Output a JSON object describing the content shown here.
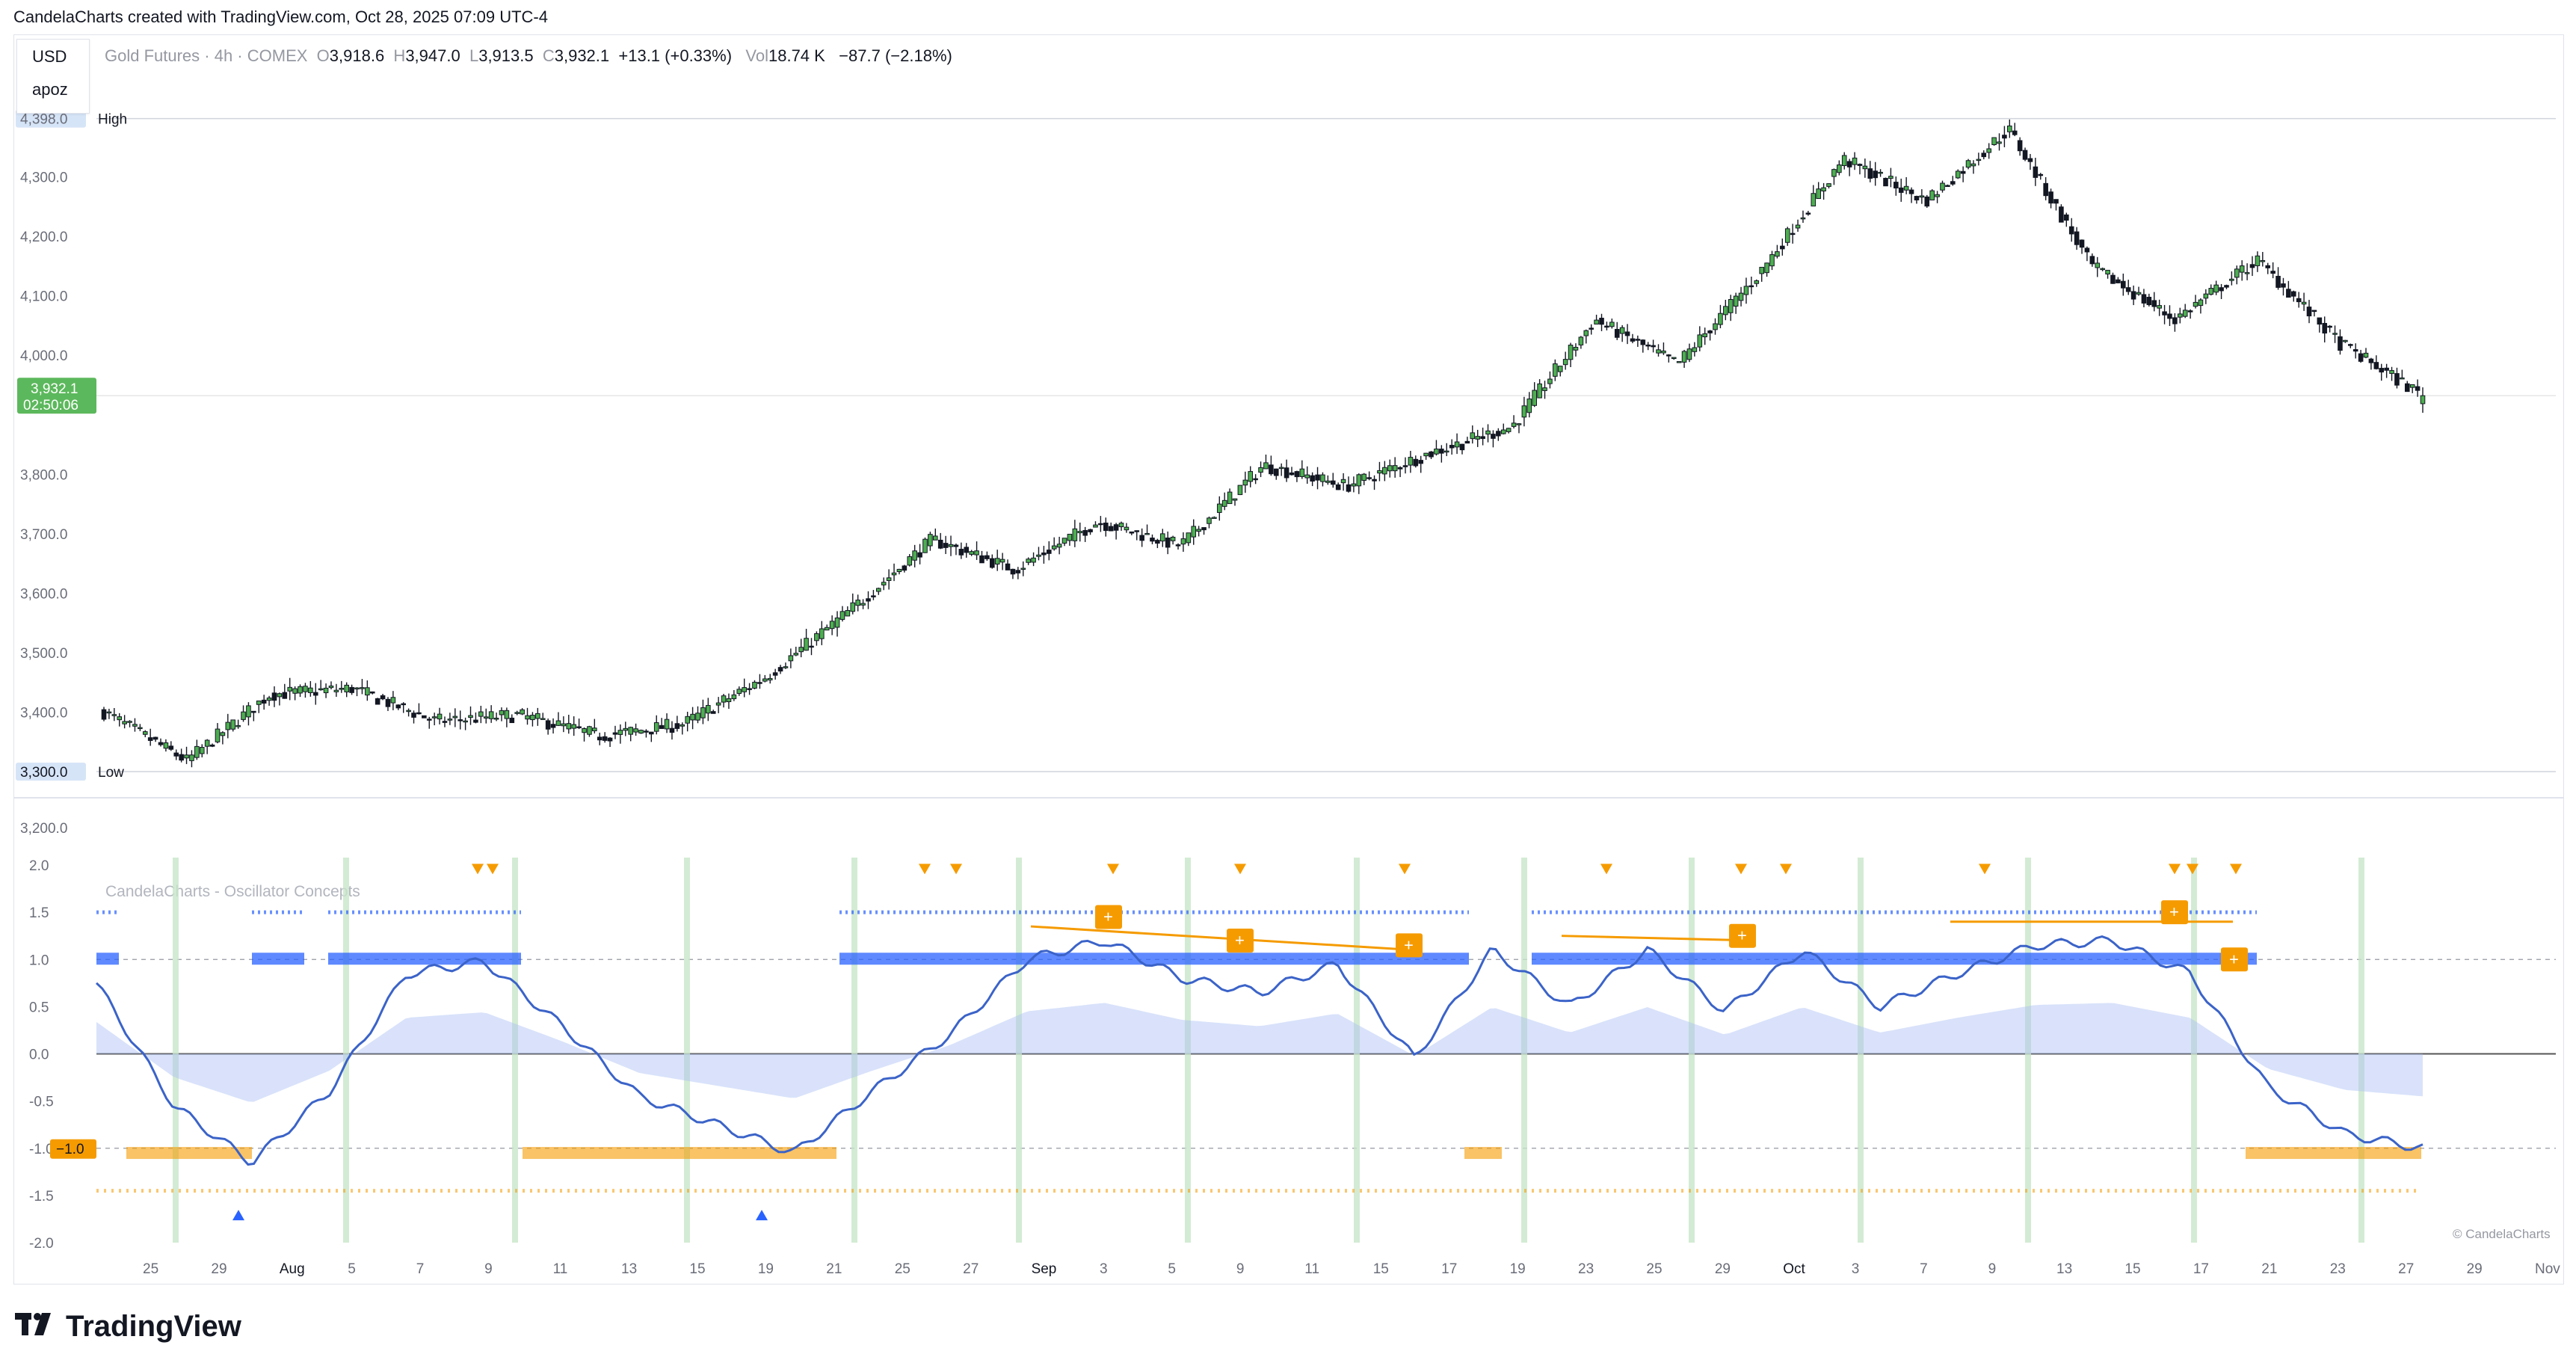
{
  "header": {
    "caption": "CandelaCharts created with TradingView.com, Oct 28, 2025 07:09 UTC-4",
    "currency": "USD",
    "user": "apoz",
    "symbol_label": "Gold Futures · 4h · COMEX",
    "ohlc": {
      "o_label": "O",
      "o": "3,918.6",
      "h_label": "H",
      "h": "3,947.0",
      "l_label": "L",
      "l": "3,913.5",
      "c_label": "C",
      "c": "3,932.1",
      "change": "+13.1 (+0.33%)"
    },
    "vol_label": "Vol",
    "vol": "18.74 K",
    "vol_change": "−87.7 (−2.18%)"
  },
  "price_pane": {
    "ticks": [
      "4,300.0",
      "4,200.0",
      "4,100.0",
      "4,000.0",
      "3,800.0",
      "3,700.0",
      "3,600.0",
      "3,500.0",
      "3,400.0",
      "3,200.0"
    ],
    "high_label": {
      "value": "4,398.0",
      "text": "High"
    },
    "low_label": {
      "value": "3,300.0",
      "text": "Low"
    },
    "last_price": {
      "value": "3,932.1",
      "countdown": "02:50:06",
      "color": "#5cb85c"
    }
  },
  "oscillator_pane": {
    "title": "CandelaCharts - Oscillator Concepts",
    "ticks": [
      "2.0",
      "1.5",
      "1.0",
      "0.5",
      "0.0",
      "-0.5",
      "-1.0",
      "-1.5",
      "-2.0"
    ],
    "current_label": "−1.0",
    "copyright": "© CandelaCharts",
    "colors": {
      "bull": "#2962ff",
      "bear": "#f59b00",
      "line_bull": "#3b63c8",
      "vertical": "#c8e6c9"
    }
  },
  "time_axis": [
    "25",
    "29",
    "Aug",
    "5",
    "7",
    "9",
    "11",
    "13",
    "15",
    "19",
    "21",
    "25",
    "27",
    "Sep",
    "3",
    "5",
    "9",
    "11",
    "15",
    "17",
    "19",
    "23",
    "25",
    "29",
    "Oct",
    "3",
    "7",
    "9",
    "13",
    "15",
    "17",
    "21",
    "23",
    "27",
    "29",
    "Nov"
  ],
  "chart_data": [
    {
      "type": "candlestick",
      "title": "Gold Futures · 4h · COMEX",
      "ylim": [
        3300,
        4400
      ],
      "x": [
        "Jul 23",
        "Jul 29",
        "Aug 5",
        "Aug 8",
        "Aug 11",
        "Aug 15",
        "Aug 19",
        "Aug 22",
        "Aug 27",
        "Sep 3",
        "Sep 9",
        "Sep 12",
        "Sep 16",
        "Sep 19",
        "Sep 23",
        "Sep 26",
        "Sep 30",
        "Oct 3",
        "Oct 7",
        "Oct 9",
        "Oct 13",
        "Oct 16",
        "Oct 17",
        "Oct 20",
        "Oct 21",
        "Oct 22",
        "Oct 24",
        "Oct 27",
        "Oct 28"
      ],
      "series": [
        {
          "values": [
            3400,
            3318,
            3430,
            3440,
            3385,
            3395,
            3360,
            3380,
            3460,
            3570,
            3690,
            3640,
            3720,
            3680,
            3815,
            3780,
            3835,
            3880,
            4060,
            3985,
            4140,
            4330,
            4260,
            4380,
            4150,
            4060,
            4160,
            4020,
            3932
          ]
        }
      ],
      "high": 4398.0,
      "low": 3300.0,
      "last": 3932.1
    },
    {
      "type": "line",
      "title": "CandelaCharts - Oscillator Concepts",
      "ylim": [
        -2.0,
        2.0
      ],
      "x": [
        "Jul 23",
        "Jul 27",
        "Jul 29",
        "Aug 1",
        "Aug 4",
        "Aug 8",
        "Aug 11",
        "Aug 14",
        "Aug 18",
        "Aug 20",
        "Aug 22",
        "Aug 25",
        "Aug 29",
        "Sep 3",
        "Sep 9",
        "Sep 12",
        "Sep 16",
        "Sep 19",
        "Sep 22",
        "Sep 25",
        "Sep 30",
        "Oct 3",
        "Oct 7",
        "Oct 10",
        "Oct 13",
        "Oct 16",
        "Oct 17",
        "Oct 20",
        "Oct 22",
        "Oct 26",
        "Oct 28"
      ],
      "series": [
        {
          "values": [
            0.75,
            -0.55,
            -1.15,
            -0.4,
            0.85,
            0.98,
            0.3,
            -0.45,
            -0.75,
            -1.05,
            -0.4,
            0.2,
            1.0,
            1.2,
            0.8,
            0.65,
            0.95,
            -0.05,
            1.1,
            0.5,
            1.1,
            0.45,
            1.1,
            0.5,
            0.85,
            1.15,
            1.2,
            0.85,
            -0.35,
            -0.85,
            -1.0
          ]
        }
      ]
    }
  ],
  "brand": {
    "name": "TradingView"
  }
}
